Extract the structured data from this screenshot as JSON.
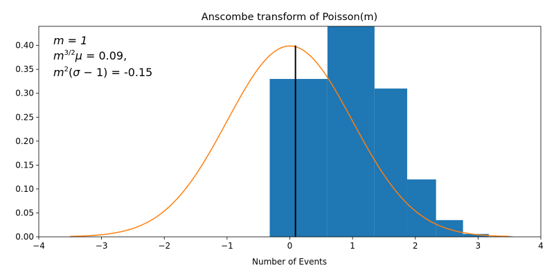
{
  "chart_data": {
    "type": "bar",
    "title": "Anscombe transform of Poisson(m)",
    "xlabel": "Number of Events",
    "ylabel": "",
    "xlim": [
      -4,
      4
    ],
    "ylim": [
      0,
      0.44
    ],
    "xticks": [
      "−4",
      "−3",
      "−2",
      "−1",
      "0",
      "1",
      "2",
      "3",
      "4"
    ],
    "yticks": [
      "0.00",
      "0.05",
      "0.10",
      "0.15",
      "0.20",
      "0.25",
      "0.30",
      "0.35",
      "0.40"
    ],
    "xtick_values": [
      -4,
      -3,
      -2,
      -1,
      0,
      1,
      2,
      3,
      4
    ],
    "ytick_values": [
      0,
      0.05,
      0.1,
      0.15,
      0.2,
      0.25,
      0.3,
      0.35,
      0.4
    ],
    "histogram": {
      "color": "#1f77b4",
      "bins": [
        {
          "x0": -0.32,
          "x1": 0.6,
          "value": 0.33
        },
        {
          "x0": 0.6,
          "x1": 1.35,
          "value": 0.44
        },
        {
          "x0": 1.35,
          "x1": 1.87,
          "value": 0.31
        },
        {
          "x0": 1.87,
          "x1": 2.33,
          "value": 0.12
        },
        {
          "x0": 2.33,
          "x1": 2.76,
          "value": 0.035
        },
        {
          "x0": 2.76,
          "x1": 3.17,
          "value": 0.006
        },
        {
          "x0": 3.17,
          "x1": 3.55,
          "value": 0.001
        }
      ]
    },
    "curve": {
      "type": "line",
      "color": "#ff7f0e",
      "function": "standard normal pdf",
      "x_range": [
        -3.5,
        3.5
      ]
    },
    "vline": {
      "x": 0.09,
      "y0": 0,
      "y1": 0.4,
      "color": "#000000"
    },
    "annotation": {
      "line1": "m = 1",
      "line2": "m^{3/2}μ = 0.09,",
      "line3": "m^2(σ − 1) = -0.15"
    },
    "grid": false,
    "legend": "none"
  }
}
